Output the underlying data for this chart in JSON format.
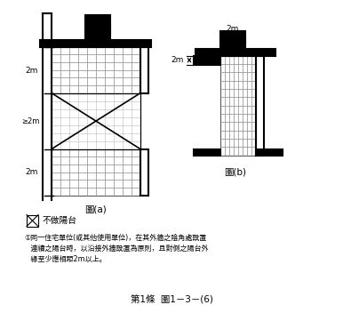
{
  "title": "第1條  圖1－3－(6)",
  "legend_label": "不做陽台",
  "note_line1": "①同一住宅單位(或其他使用單位)，在其外牆之陰角處設置",
  "note_line2": "   連續之陽台時，以沿接外牆設置為原則，且對側之陽台外",
  "note_line3": "   緣至少應相距2m以上。",
  "fig_a_label": "圖(a)",
  "fig_b_label": "圖(b)"
}
